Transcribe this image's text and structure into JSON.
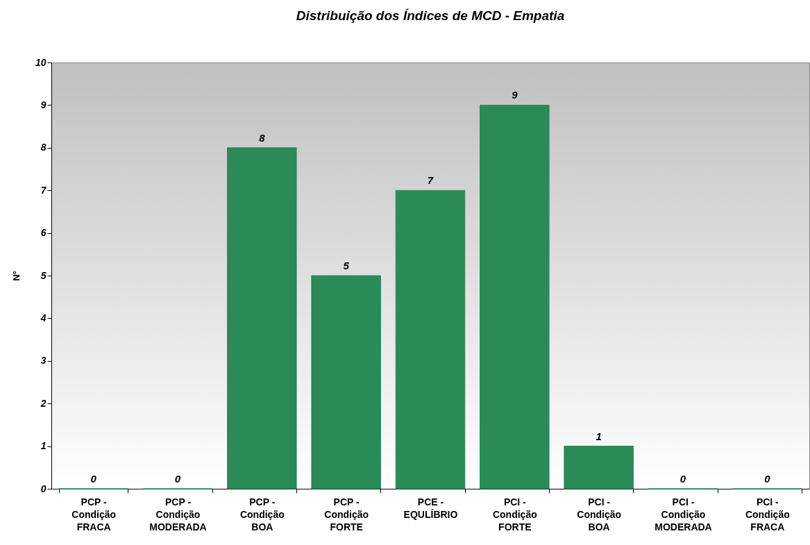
{
  "chart_data": {
    "type": "bar",
    "title": "Distribuição dos Índices de MCD - Empatia",
    "ylabel": "Nº",
    "categories": [
      "PCP - Condição FRACA",
      "PCP - Condição MODERADA",
      "PCP - Condição BOA",
      "PCP - Condição FORTE",
      "PCE - EQULÍBRIO",
      "PCI - Condição FORTE",
      "PCI - Condição BOA",
      "PCI - Condição MODERADA",
      "PCI - Condição FRACA"
    ],
    "values": [
      0,
      0,
      8,
      5,
      7,
      9,
      1,
      0,
      0
    ],
    "color": "#2a8a58",
    "ylim": [
      0,
      10
    ],
    "yticks": [
      0,
      1,
      2,
      3,
      4,
      5,
      6,
      7,
      8,
      9,
      10
    ],
    "data_labels": true,
    "grid": false
  }
}
